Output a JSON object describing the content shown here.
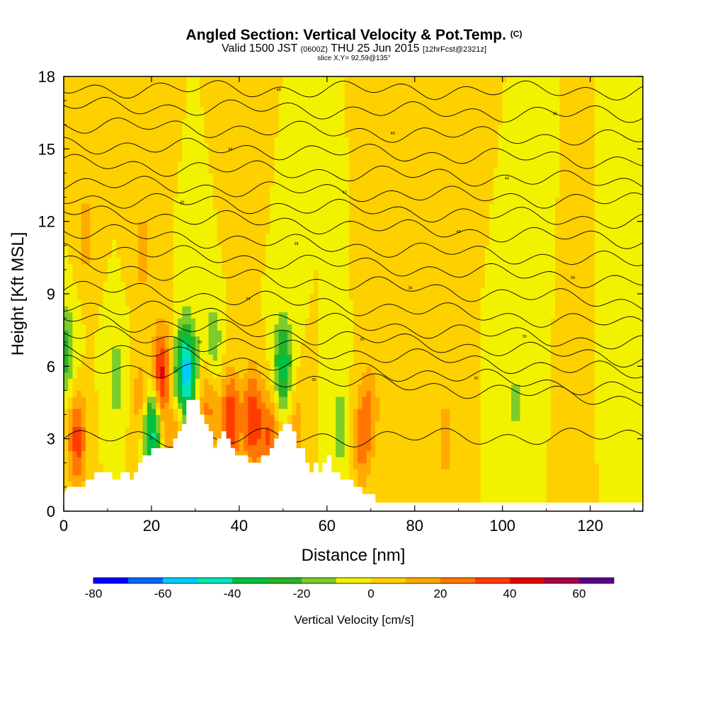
{
  "header": {
    "title": "Angled Section: Vertical Velocity & Pot.Temp.",
    "title_suffix": "(C)",
    "valid_prefix": "Valid 1500 JST",
    "valid_zulu": "(0600Z)",
    "valid_date": "THU 25 Jun 2015",
    "forecast": "[12hrFcst@2321z]",
    "slice": "slice X,Y= 92,59@135°"
  },
  "chart_data": {
    "type": "heatmap",
    "title": "Angled Section: Vertical Velocity & Pot.Temp.",
    "xlabel": "Distance [nm]",
    "ylabel": "Height [Kft MSL]",
    "xlim": [
      0,
      132
    ],
    "ylim": [
      0,
      18
    ],
    "x_ticks": [
      "0",
      "20",
      "40",
      "60",
      "80",
      "100",
      "120"
    ],
    "y_ticks": [
      "0",
      "3",
      "6",
      "9",
      "12",
      "15",
      "18"
    ],
    "background_value": 0,
    "colorbar": {
      "title": "Vertical Velocity [cm/s]",
      "tick_labels": [
        "-80",
        "-60",
        "-40",
        "-20",
        "0",
        "20",
        "40",
        "60"
      ],
      "levels": [
        -80,
        -70,
        -60,
        -50,
        -40,
        -30,
        -20,
        -10,
        0,
        10,
        20,
        30,
        40,
        50,
        60,
        70
      ],
      "colors": [
        "#0000ff",
        "#0066ff",
        "#00ccff",
        "#00e6b8",
        "#00c040",
        "#28b428",
        "#7ccd2a",
        "#f2f200",
        "#ffd000",
        "#ffaa00",
        "#ff7700",
        "#ff3c00",
        "#e60000",
        "#a8004a",
        "#5c008c"
      ]
    },
    "terrain_kft": [
      [
        0,
        0.7
      ],
      [
        1,
        1.0
      ],
      [
        5,
        1.0
      ],
      [
        5,
        1.3
      ],
      [
        7,
        1.3
      ],
      [
        7,
        1.6
      ],
      [
        11,
        1.6
      ],
      [
        11,
        1.3
      ],
      [
        13,
        1.3
      ],
      [
        13,
        1.6
      ],
      [
        15,
        1.6
      ],
      [
        15,
        1.3
      ],
      [
        16,
        1.3
      ],
      [
        16,
        1.6
      ],
      [
        17,
        1.6
      ],
      [
        17,
        2.0
      ],
      [
        18,
        2.0
      ],
      [
        18,
        2.3
      ],
      [
        20,
        2.3
      ],
      [
        20,
        2.6
      ],
      [
        25,
        2.6
      ],
      [
        25,
        3.0
      ],
      [
        26,
        3.0
      ],
      [
        26,
        3.3
      ],
      [
        27,
        3.3
      ],
      [
        27,
        3.6
      ],
      [
        28,
        3.6
      ],
      [
        28,
        4.6
      ],
      [
        31,
        4.6
      ],
      [
        31,
        4.0
      ],
      [
        32,
        4.0
      ],
      [
        32,
        3.6
      ],
      [
        33,
        3.6
      ],
      [
        33,
        3.3
      ],
      [
        34,
        3.3
      ],
      [
        34,
        2.6
      ],
      [
        35,
        2.6
      ],
      [
        35,
        3.0
      ],
      [
        36,
        3.0
      ],
      [
        36,
        3.3
      ],
      [
        37,
        3.3
      ],
      [
        37,
        3.0
      ],
      [
        38,
        3.0
      ],
      [
        38,
        2.6
      ],
      [
        39,
        2.6
      ],
      [
        39,
        2.3
      ],
      [
        42,
        2.3
      ],
      [
        42,
        2.0
      ],
      [
        45,
        2.0
      ],
      [
        45,
        2.3
      ],
      [
        47,
        2.3
      ],
      [
        47,
        2.6
      ],
      [
        48,
        2.6
      ],
      [
        48,
        3.0
      ],
      [
        49,
        3.0
      ],
      [
        49,
        3.3
      ],
      [
        50,
        3.3
      ],
      [
        50,
        3.6
      ],
      [
        52,
        3.6
      ],
      [
        52,
        3.3
      ],
      [
        53,
        3.3
      ],
      [
        53,
        2.6
      ],
      [
        55,
        2.6
      ],
      [
        55,
        2.0
      ],
      [
        56,
        2.0
      ],
      [
        56,
        1.6
      ],
      [
        57,
        1.6
      ],
      [
        57,
        2.0
      ],
      [
        58,
        2.0
      ],
      [
        58,
        1.6
      ],
      [
        59,
        1.6
      ],
      [
        59,
        2.0
      ],
      [
        60,
        2.0
      ],
      [
        60,
        2.3
      ],
      [
        61,
        2.3
      ],
      [
        61,
        1.6
      ],
      [
        63,
        1.6
      ],
      [
        63,
        1.3
      ],
      [
        66,
        1.3
      ],
      [
        66,
        1.0
      ],
      [
        68,
        1.0
      ],
      [
        68,
        0.7
      ],
      [
        71,
        0.7
      ],
      [
        71,
        0.35
      ],
      [
        132,
        0.35
      ]
    ],
    "updraft_cores": [
      {
        "x": 3,
        "y": 3.0,
        "peak": 35
      },
      {
        "x": 18,
        "y": 4.5,
        "peak": 25
      },
      {
        "x": 22.5,
        "y": 5.5,
        "peak": 55
      },
      {
        "x": 25,
        "y": 3.5,
        "peak": 35
      },
      {
        "x": 33,
        "y": 4.5,
        "peak": 25
      },
      {
        "x": 38,
        "y": 3.8,
        "peak": 40
      },
      {
        "x": 43,
        "y": 3.8,
        "peak": 40
      },
      {
        "x": 47,
        "y": 3.0,
        "peak": 30
      },
      {
        "x": 53,
        "y": 3.5,
        "peak": 15
      },
      {
        "x": 68,
        "y": 3.0,
        "peak": 25
      },
      {
        "x": 70,
        "y": 4.5,
        "peak": 15
      },
      {
        "x": 87,
        "y": 3.0,
        "peak": 15
      },
      {
        "x": 118,
        "y": 2.0,
        "peak": 10
      },
      {
        "x": 5,
        "y": 11.5,
        "peak": 15
      },
      {
        "x": 18,
        "y": 10.8,
        "peak": 15
      },
      {
        "x": 40,
        "y": 10.3,
        "peak": 10
      },
      {
        "x": 87,
        "y": 12.5,
        "peak": 10
      }
    ],
    "downdraft_cores": [
      {
        "x": 0.5,
        "y": 6.5,
        "peak": -25
      },
      {
        "x": 12,
        "y": 5.5,
        "peak": -15
      },
      {
        "x": 20,
        "y": 3.5,
        "peak": -55
      },
      {
        "x": 24.5,
        "y": 4.8,
        "peak": -35
      },
      {
        "x": 28,
        "y": 5.8,
        "peak": -55
      },
      {
        "x": 34,
        "y": 6.8,
        "peak": -20
      },
      {
        "x": 50,
        "y": 6.0,
        "peak": -35
      },
      {
        "x": 63,
        "y": 3.5,
        "peak": -15
      },
      {
        "x": 103,
        "y": 4.5,
        "peak": -12
      },
      {
        "x": 125,
        "y": 2.2,
        "peak": -10
      }
    ],
    "isentropes": {
      "series": [
        {
          "label": "30",
          "y0": 3.0,
          "y1": 3.1
        },
        {
          "label": "30",
          "y0": 6.1,
          "y1": 4.6
        },
        {
          "label": "30",
          "y0": 6.8,
          "y1": 5.0
        },
        {
          "label": "30",
          "y0": 7.4,
          "y1": 5.7
        },
        {
          "label": "30",
          "y0": 8.0,
          "y1": 6.3
        },
        {
          "label": "30",
          "y0": 8.6,
          "y1": 6.9
        },
        {
          "label": "34",
          "y0": 9.3,
          "y1": 7.7
        },
        {
          "label": "36",
          "y0": 10.2,
          "y1": 8.6
        },
        {
          "label": "38",
          "y0": 10.9,
          "y1": 9.5
        },
        {
          "label": "38",
          "y0": 11.6,
          "y1": 10.3
        },
        {
          "label": "40",
          "y0": 12.4,
          "y1": 11.2
        },
        {
          "label": "40",
          "y0": 13.0,
          "y1": 12.0
        },
        {
          "label": "42",
          "y0": 13.6,
          "y1": 12.8
        },
        {
          "label": "44",
          "y0": 14.4,
          "y1": 13.6
        },
        {
          "label": "44",
          "y0": 15.2,
          "y1": 14.5
        },
        {
          "label": "46",
          "y0": 16.0,
          "y1": 15.4
        },
        {
          "label": "46",
          "y0": 16.8,
          "y1": 16.4
        },
        {
          "label": "48",
          "y0": 17.5,
          "y1": 17.4
        }
      ]
    }
  }
}
